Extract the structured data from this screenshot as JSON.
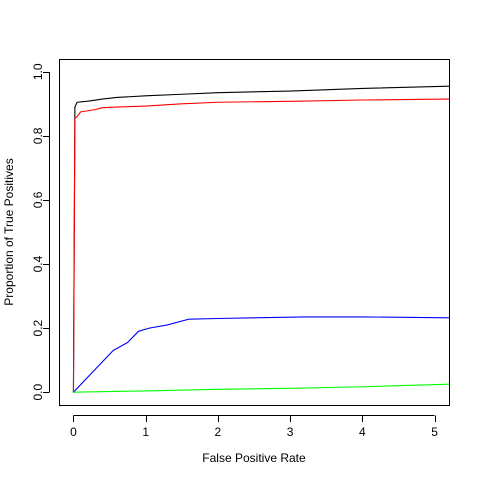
{
  "chart_data": {
    "type": "line",
    "title": "",
    "xlabel": "False Positive Rate",
    "ylabel": "Proportion of True Positives",
    "xlim": [
      -0.2,
      5.2
    ],
    "ylim": [
      -0.04,
      1.04
    ],
    "x_ticks": [
      0,
      1,
      2,
      3,
      4,
      5
    ],
    "x_tick_labels": [
      "0",
      "1",
      "2",
      "3",
      "4",
      "5"
    ],
    "y_ticks": [
      0.0,
      0.2,
      0.4,
      0.6,
      0.8,
      1.0
    ],
    "y_tick_labels": [
      "0.0",
      "0.2",
      "0.4",
      "0.6",
      "0.8",
      "1.0"
    ],
    "grid": false,
    "legend": "none",
    "series": [
      {
        "color": "#000000",
        "points": [
          [
            0,
            0
          ],
          [
            0.02,
            0.89
          ],
          [
            0.05,
            0.905
          ],
          [
            0.15,
            0.907
          ],
          [
            0.25,
            0.91
          ],
          [
            0.4,
            0.915
          ],
          [
            0.6,
            0.92
          ],
          [
            1.0,
            0.925
          ],
          [
            1.5,
            0.93
          ],
          [
            2.0,
            0.935
          ],
          [
            3.0,
            0.94
          ],
          [
            4.0,
            0.948
          ],
          [
            5.2,
            0.955
          ]
        ]
      },
      {
        "color": "#ff0000",
        "points": [
          [
            0,
            0
          ],
          [
            0.02,
            0.855
          ],
          [
            0.05,
            0.86
          ],
          [
            0.1,
            0.875
          ],
          [
            0.3,
            0.882
          ],
          [
            0.4,
            0.888
          ],
          [
            0.6,
            0.89
          ],
          [
            1.0,
            0.893
          ],
          [
            1.5,
            0.9
          ],
          [
            2.0,
            0.905
          ],
          [
            3.0,
            0.908
          ],
          [
            4.0,
            0.912
          ],
          [
            5.2,
            0.915
          ]
        ]
      },
      {
        "color": "#0000ff",
        "points": [
          [
            0,
            0
          ],
          [
            0.55,
            0.13
          ],
          [
            0.75,
            0.155
          ],
          [
            0.9,
            0.19
          ],
          [
            1.05,
            0.2
          ],
          [
            1.3,
            0.21
          ],
          [
            1.6,
            0.228
          ],
          [
            2.0,
            0.23
          ],
          [
            2.5,
            0.232
          ],
          [
            3.2,
            0.235
          ],
          [
            4.0,
            0.235
          ],
          [
            5.2,
            0.232
          ]
        ]
      },
      {
        "color": "#00ff00",
        "points": [
          [
            0,
            0
          ],
          [
            1.0,
            0.004
          ],
          [
            2.0,
            0.009
          ],
          [
            3.0,
            0.012
          ],
          [
            4.0,
            0.017
          ],
          [
            5.2,
            0.025
          ]
        ]
      }
    ]
  }
}
